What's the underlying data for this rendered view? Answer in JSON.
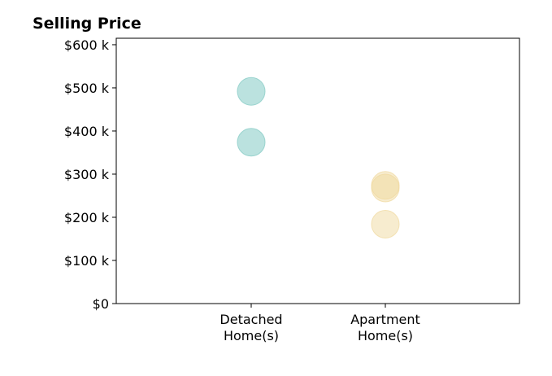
{
  "chart_data": {
    "type": "scatter",
    "title": "Selling Price",
    "xlabel": "",
    "ylabel": "",
    "categories": [
      "Detached\nHome(s)",
      "Apartment\nHome(s)"
    ],
    "y_ticks": [
      0,
      100000,
      200000,
      300000,
      400000,
      500000,
      600000
    ],
    "y_tick_labels": [
      "$0",
      "$100 k",
      "$200 k",
      "$300 k",
      "$400 k",
      "$500 k",
      "$600 k"
    ],
    "ylim": [
      0,
      615000
    ],
    "grid": false,
    "series": [
      {
        "category": "Detached\nHome(s)",
        "color": "#8ecfc9",
        "points": [
          {
            "value": 492000,
            "opacity": 0.6
          },
          {
            "value": 374000,
            "opacity": 0.6
          }
        ]
      },
      {
        "category": "Apartment\nHome(s)",
        "color": "#f0d9a0",
        "points": [
          {
            "value": 274000,
            "opacity": 0.5
          },
          {
            "value": 268000,
            "opacity": 0.5
          },
          {
            "value": 184000,
            "opacity": 0.5
          }
        ]
      }
    ]
  }
}
